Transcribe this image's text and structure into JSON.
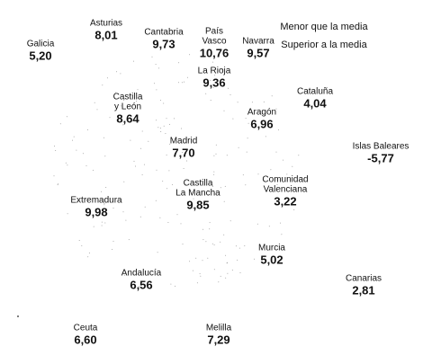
{
  "legend": [
    "Menor que la media",
    "Superior a la media"
  ],
  "regions": [
    {
      "lines": [
        "Asturias"
      ],
      "value": "8,01"
    },
    {
      "lines": [
        "Galicia"
      ],
      "value": "5,20"
    },
    {
      "lines": [
        "Cantabria"
      ],
      "value": "9,73"
    },
    {
      "lines": [
        "País",
        "Vasco"
      ],
      "value": "10,76"
    },
    {
      "lines": [
        "Navarra"
      ],
      "value": "9,57"
    },
    {
      "lines": [
        "La Rioja"
      ],
      "value": "9,36"
    },
    {
      "lines": [
        "Cataluña"
      ],
      "value": "4,04"
    },
    {
      "lines": [
        "Castilla",
        "y León"
      ],
      "value": "8,64"
    },
    {
      "lines": [
        "Aragón"
      ],
      "value": "6,96"
    },
    {
      "lines": [
        "Madrid"
      ],
      "value": "7,70"
    },
    {
      "lines": [
        "Islas Baleares"
      ],
      "value": "-5,77"
    },
    {
      "lines": [
        "Castilla",
        "La Mancha"
      ],
      "value": "9,85"
    },
    {
      "lines": [
        "Comunidad",
        "Valenciana"
      ],
      "value": "3,22"
    },
    {
      "lines": [
        "Extremadura"
      ],
      "value": "9,98"
    },
    {
      "lines": [
        "Murcia"
      ],
      "value": "5,02"
    },
    {
      "lines": [
        "Andalucía"
      ],
      "value": "6,56"
    },
    {
      "lines": [
        "Canarias"
      ],
      "value": "2,81"
    },
    {
      "lines": [
        "Ceuta"
      ],
      "value": "6,60"
    },
    {
      "lines": [
        "Melilla"
      ],
      "value": "7,29"
    }
  ]
}
